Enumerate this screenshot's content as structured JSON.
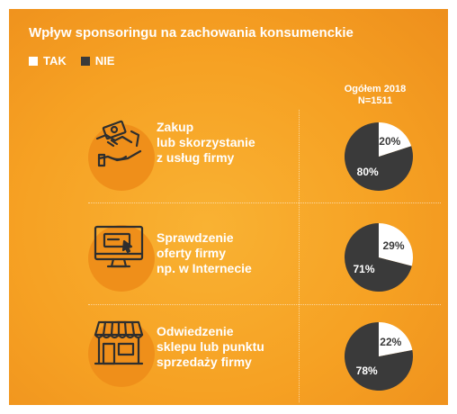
{
  "title": "Wpływ sponsoringu na zachowania konsumenckie",
  "legend": [
    {
      "label": "TAK",
      "color": "#ffffff"
    },
    {
      "label": "NIE",
      "color": "#3a3a3a"
    }
  ],
  "column_header": {
    "line1": "Ogółem 2018",
    "line2": "N=1511"
  },
  "rows": [
    {
      "icon": "money-handshake-icon",
      "label_lines": [
        "Zakup",
        "lub skorzystanie",
        "z usług firmy"
      ],
      "tak": 20,
      "nie": 80
    },
    {
      "icon": "computer-monitor-icon",
      "label_lines": [
        "Sprawdzenie",
        "oferty firmy",
        "np. w Internecie"
      ],
      "tak": 29,
      "nie": 71
    },
    {
      "icon": "storefront-icon",
      "label_lines": [
        "Odwiedzenie",
        "sklepu lub punktu",
        "sprzedaży firmy"
      ],
      "tak": 22,
      "nie": 78
    }
  ],
  "chart_data": {
    "type": "pie",
    "categories": [
      "TAK",
      "NIE"
    ],
    "series": [
      {
        "name": "Zakup lub skorzystanie z usług firmy",
        "values": [
          20,
          80
        ]
      },
      {
        "name": "Sprawdzenie oferty firmy np. w Internecie",
        "values": [
          29,
          71
        ]
      },
      {
        "name": "Odwiedzenie sklepu lub punktu sprzedaży firmy",
        "values": [
          22,
          78
        ]
      }
    ],
    "title": "Wpływ sponsoringu na zachowania konsumenckie",
    "legend": "top-left",
    "unit": "%",
    "colors": {
      "TAK": "#ffffff",
      "NIE": "#3a3a3a"
    }
  }
}
